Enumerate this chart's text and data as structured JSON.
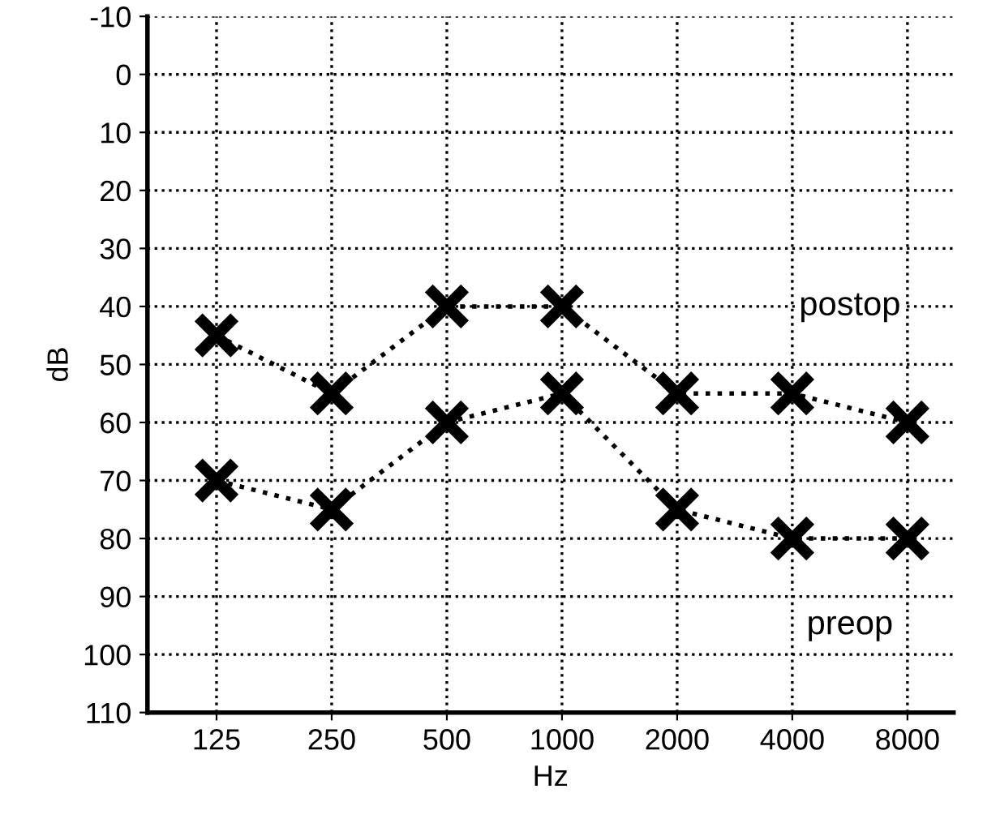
{
  "chart_data": {
    "type": "line",
    "xlabel": "Hz",
    "ylabel": "dB",
    "categories": [
      "125",
      "250",
      "500",
      "1000",
      "2000",
      "4000",
      "8000"
    ],
    "series": [
      {
        "name": "postop",
        "color": "#000000",
        "values": [
          45,
          55,
          40,
          40,
          55,
          55,
          60
        ]
      },
      {
        "name": "preop",
        "color": "#000000",
        "values": [
          70,
          75,
          60,
          55,
          75,
          80,
          80
        ]
      }
    ],
    "ylim": [
      110,
      -10
    ],
    "yticks": [
      -10,
      0,
      10,
      20,
      30,
      40,
      50,
      60,
      70,
      80,
      90,
      100,
      110
    ],
    "grid": true,
    "marker": "cross",
    "line_style": "dotted"
  }
}
